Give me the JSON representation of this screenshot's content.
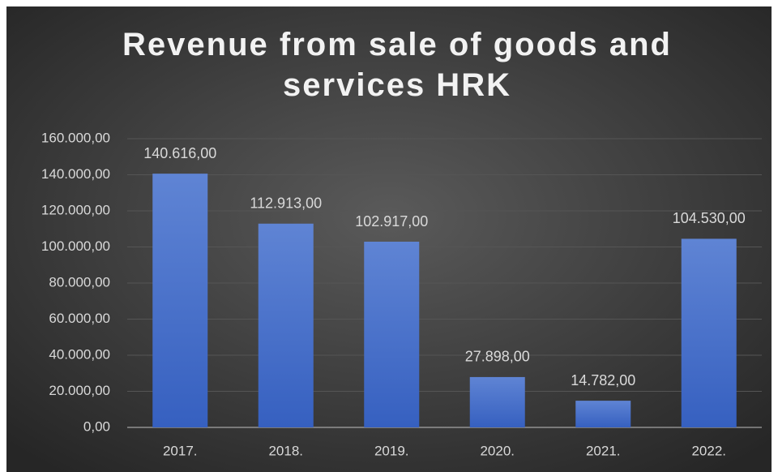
{
  "chart_data": {
    "type": "bar",
    "title": "Revenue from sale of goods and services HRK",
    "categories": [
      "2017.",
      "2018.",
      "2019.",
      "2020.",
      "2021.",
      "2022."
    ],
    "values": [
      140616,
      112913,
      102917,
      27898,
      14782,
      104530
    ],
    "value_labels": [
      "140.616,00",
      "112.913,00",
      "102.917,00",
      "27.898,00",
      "14.782,00",
      "104.530,00"
    ],
    "color": "#4472c4",
    "ylim": [
      0,
      160000
    ],
    "yticks": [
      {
        "value": 0,
        "label": "0,00"
      },
      {
        "value": 20000,
        "label": "20.000,00"
      },
      {
        "value": 40000,
        "label": "40.000,00"
      },
      {
        "value": 60000,
        "label": "60.000,00"
      },
      {
        "value": 80000,
        "label": "80.000,00"
      },
      {
        "value": 100000,
        "label": "100.000,00"
      },
      {
        "value": 120000,
        "label": "120.000,00"
      },
      {
        "value": 140000,
        "label": "140.000,00"
      },
      {
        "value": 160000,
        "label": "160.000,00"
      }
    ],
    "grid": true
  }
}
